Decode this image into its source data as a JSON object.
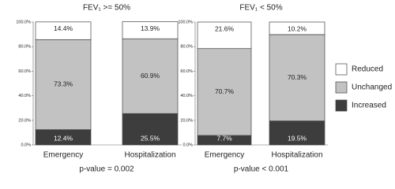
{
  "chart_data": [
    {
      "type": "stacked_bar",
      "title": "FEV₁ >= 50%",
      "annotation": "p-value = 0.002",
      "categories": [
        "Emergency",
        "Hospitalization"
      ],
      "ylim": [
        0,
        100
      ],
      "yticks": [
        {
          "value": 0,
          "label": "0.0%"
        },
        {
          "value": 20,
          "label": "20.0%"
        },
        {
          "value": 40,
          "label": "40.0%"
        },
        {
          "value": 60,
          "label": "60.0%"
        },
        {
          "value": 80,
          "label": "80.0%"
        },
        {
          "value": 100,
          "label": "100.0%"
        }
      ],
      "series": [
        {
          "color": "#3d3d3d",
          "values": [
            12.4,
            25.5
          ],
          "value_labels": [
            "12.4%",
            "25.5%"
          ]
        },
        {
          "color": "#c2c2c2",
          "values": [
            73.3,
            60.9
          ],
          "value_labels": [
            "73.3%",
            "60.9%"
          ]
        },
        {
          "color": "#ffffff",
          "values": [
            14.4,
            13.9
          ],
          "value_labels": [
            "14.4%",
            "13.9%"
          ]
        }
      ]
    },
    {
      "type": "stacked_bar",
      "title": "FEV₁ < 50%",
      "annotation": "p-value < 0.001",
      "categories": [
        "Emergency",
        "Hospitalization"
      ],
      "ylim": [
        0,
        100
      ],
      "yticks": [
        {
          "value": 0,
          "label": "0.0%"
        },
        {
          "value": 20,
          "label": "20.0%"
        },
        {
          "value": 40,
          "label": "40.0%"
        },
        {
          "value": 60,
          "label": "60.0%"
        },
        {
          "value": 80,
          "label": "80.0%"
        },
        {
          "value": 100,
          "label": "100.0%"
        }
      ],
      "series": [
        {
          "name": "Increased",
          "color": "#3d3d3d",
          "values": [
            7.7,
            19.5
          ],
          "value_labels": [
            "7.7%",
            "19.5%"
          ]
        },
        {
          "name": "Unchanged",
          "color": "#c2c2c2",
          "values": [
            70.7,
            70.3
          ],
          "value_labels": [
            "70.7%",
            "70.3%"
          ]
        },
        {
          "name": "Reduced",
          "color": "#ffffff",
          "values": [
            21.6,
            10.2
          ],
          "value_labels": [
            "21.6%",
            "10.2%"
          ]
        }
      ]
    }
  ]
}
